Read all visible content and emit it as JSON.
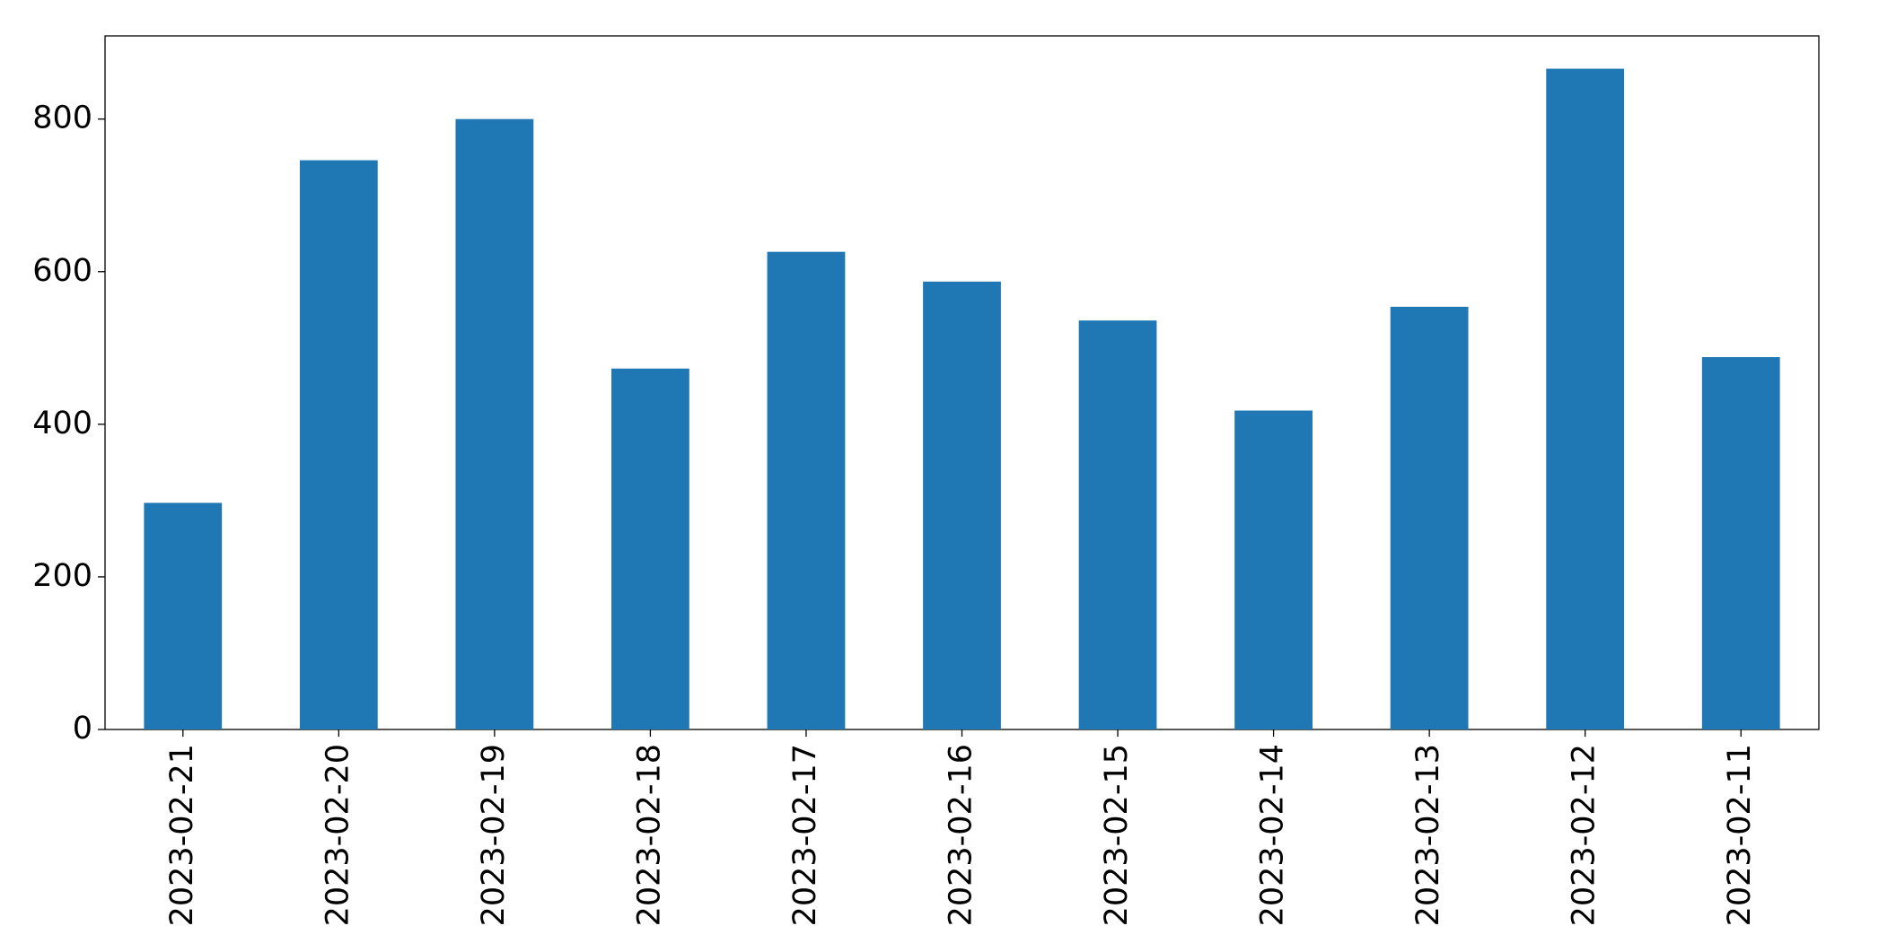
{
  "chart_data": {
    "type": "bar",
    "categories": [
      "2023-02-21",
      "2023-02-20",
      "2023-02-19",
      "2023-02-18",
      "2023-02-17",
      "2023-02-16",
      "2023-02-15",
      "2023-02-14",
      "2023-02-13",
      "2023-02-12",
      "2023-02-11"
    ],
    "values": [
      297,
      746,
      800,
      473,
      626,
      587,
      536,
      418,
      554,
      866,
      488
    ],
    "color": "#1f77b4",
    "ylim": [
      0,
      909
    ],
    "yticks": [
      0,
      200,
      400,
      600,
      800
    ],
    "grid": false
  }
}
